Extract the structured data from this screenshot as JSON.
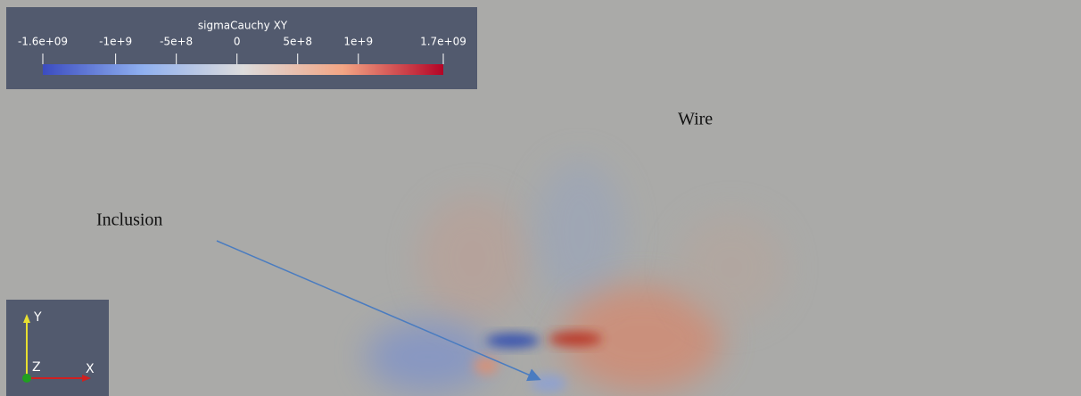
{
  "colorbar": {
    "title": "sigmaCauchy XY",
    "range": [
      -1600000000,
      1700000000
    ],
    "ticks": [
      {
        "value": -1600000000,
        "label": "-1.6e+09"
      },
      {
        "value": -1000000000,
        "label": "-1e+9"
      },
      {
        "value": -500000000,
        "label": "-5e+8"
      },
      0,
      {
        "value": 500000000,
        "label": "5e+8"
      },
      {
        "value": 1000000000,
        "label": "1e+9"
      },
      {
        "value": 1700000000,
        "label": "1.7e+09"
      }
    ]
  },
  "annotations": {
    "wire": "Wire",
    "inclusion": "Inclusion"
  },
  "axes": {
    "y": "Y",
    "z": "Z",
    "x": "X"
  }
}
